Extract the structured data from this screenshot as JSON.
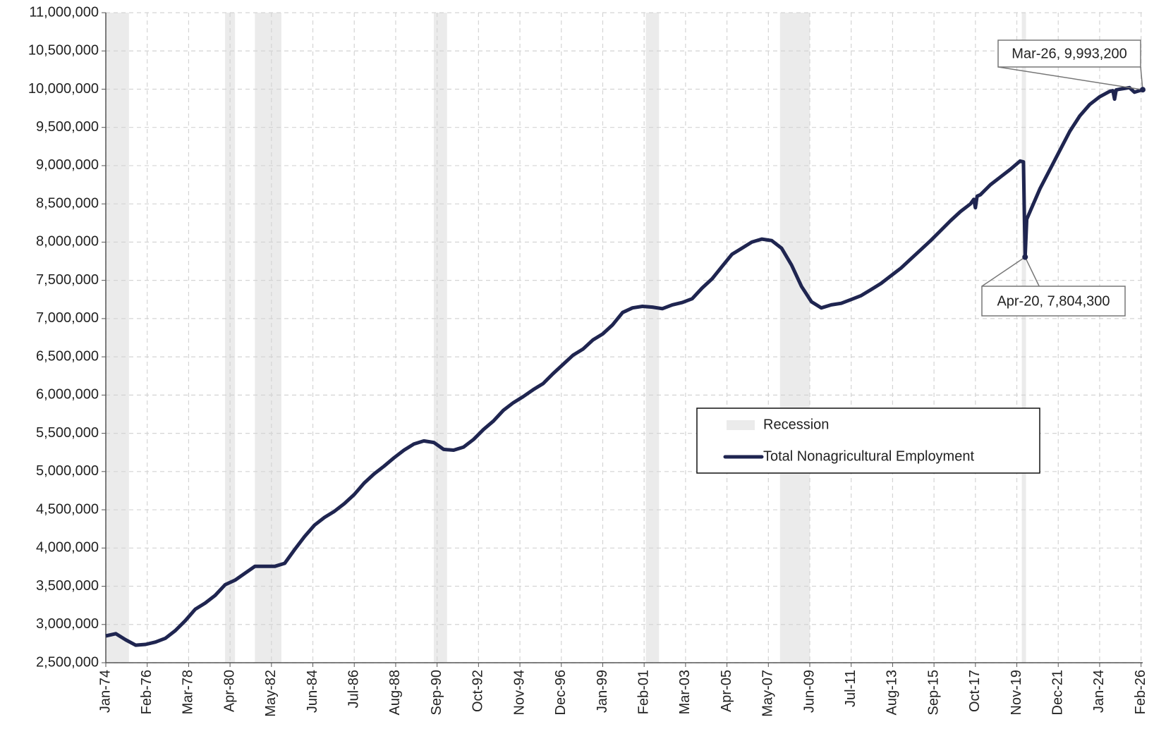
{
  "chart_data": {
    "type": "line",
    "xlim": [
      "Jan-74",
      "Mar-26"
    ],
    "xticks": [
      "Jan-74",
      "Feb-76",
      "Mar-78",
      "Apr-80",
      "May-82",
      "Jun-84",
      "Jul-86",
      "Aug-88",
      "Sep-90",
      "Oct-92",
      "Nov-94",
      "Dec-96",
      "Jan-99",
      "Feb-01",
      "Mar-03",
      "Apr-05",
      "May-07",
      "Jun-09",
      "Jul-11",
      "Aug-13",
      "Sep-15",
      "Oct-17",
      "Nov-19",
      "Dec-21",
      "Jan-24",
      "Feb-26"
    ],
    "ylim": [
      2500000,
      11000000
    ],
    "yticks": [
      {
        "value": 2500000,
        "label": "2,500,000"
      },
      {
        "value": 3000000,
        "label": "3,000,000"
      },
      {
        "value": 3500000,
        "label": "3,500,000"
      },
      {
        "value": 4000000,
        "label": "4,000,000"
      },
      {
        "value": 4500000,
        "label": "4,500,000"
      },
      {
        "value": 5000000,
        "label": "5,000,000"
      },
      {
        "value": 5500000,
        "label": "5,500,000"
      },
      {
        "value": 6000000,
        "label": "6,000,000"
      },
      {
        "value": 6500000,
        "label": "6,500,000"
      },
      {
        "value": 7000000,
        "label": "7,000,000"
      },
      {
        "value": 7500000,
        "label": "7,500,000"
      },
      {
        "value": 8000000,
        "label": "8,000,000"
      },
      {
        "value": 8500000,
        "label": "8,500,000"
      },
      {
        "value": 9000000,
        "label": "9,000,000"
      },
      {
        "value": 9500000,
        "label": "9,500,000"
      },
      {
        "value": 10000000,
        "label": "10,000,000"
      },
      {
        "value": 10500000,
        "label": "10,500,000"
      },
      {
        "value": 11000000,
        "label": "11,000,000"
      }
    ],
    "grid": true,
    "recessions": {
      "name": "Recession",
      "color": "#ebebeb",
      "periods": [
        [
          "Jan-74",
          "Mar-75"
        ],
        [
          "Jan-80",
          "Jul-80"
        ],
        [
          "Jul-81",
          "Nov-82"
        ],
        [
          "Jul-90",
          "Mar-91"
        ],
        [
          "Mar-01",
          "Nov-01"
        ],
        [
          "Dec-07",
          "Jun-09"
        ],
        [
          "Feb-20",
          "Apr-20"
        ]
      ]
    },
    "x": [
      "Jan-74",
      "Jul-74",
      "Jan-75",
      "Jul-75",
      "Jan-76",
      "Jul-76",
      "Jan-77",
      "Jul-77",
      "Jan-78",
      "Jul-78",
      "Jan-79",
      "Jul-79",
      "Jan-80",
      "Jul-80",
      "Jan-81",
      "Jul-81",
      "Jan-82",
      "Jul-82",
      "Jan-83",
      "Jul-83",
      "Jan-84",
      "Jul-84",
      "Jan-85",
      "Jul-85",
      "Jan-86",
      "Jul-86",
      "Jan-87",
      "Jul-87",
      "Jan-88",
      "Jul-88",
      "Jan-89",
      "Jul-89",
      "Jan-90",
      "Jul-90",
      "Jan-91",
      "Jul-91",
      "Jan-92",
      "Jul-92",
      "Jan-93",
      "Jul-93",
      "Jan-94",
      "Jul-94",
      "Jan-95",
      "Jul-95",
      "Jan-96",
      "Jul-96",
      "Jan-97",
      "Jul-97",
      "Jan-98",
      "Jul-98",
      "Jan-99",
      "Jul-99",
      "Jan-00",
      "Jul-00",
      "Jan-01",
      "Jul-01",
      "Jan-02",
      "Jul-02",
      "Jan-03",
      "Jul-03",
      "Jan-04",
      "Jul-04",
      "Jan-05",
      "Jul-05",
      "Jan-06",
      "Jul-06",
      "Jan-07",
      "Jul-07",
      "Jan-08",
      "Jul-08",
      "Jan-09",
      "Jul-09",
      "Jan-10",
      "Jul-10",
      "Jan-11",
      "Jul-11",
      "Jan-12",
      "Jul-12",
      "Jan-13",
      "Jul-13",
      "Jan-14",
      "Jul-14",
      "Jan-15",
      "Jul-15",
      "Jan-16",
      "Jul-16",
      "Jan-17",
      "Jul-17",
      "Sep-17",
      "Oct-17",
      "Nov-17",
      "Jan-18",
      "Jul-18",
      "Jan-19",
      "Jul-19",
      "Jan-20",
      "Mar-20",
      "Apr-20",
      "May-20",
      "Jul-20",
      "Jan-21",
      "Jul-21",
      "Jan-22",
      "Jul-22",
      "Jan-23",
      "Jul-23",
      "Jan-24",
      "Jul-24",
      "Sep-24",
      "Oct-24",
      "Nov-24",
      "Jan-25",
      "Jul-25",
      "Oct-25",
      "Jan-26",
      "Mar-26"
    ],
    "series": [
      {
        "name": "Total Nonagricultural Employment",
        "color": "#1f2550",
        "values": [
          2850000,
          2880000,
          2800000,
          2730000,
          2740000,
          2770000,
          2820000,
          2920000,
          3050000,
          3200000,
          3280000,
          3380000,
          3520000,
          3580000,
          3670000,
          3760000,
          3760000,
          3760000,
          3800000,
          3980000,
          4150000,
          4300000,
          4400000,
          4480000,
          4580000,
          4700000,
          4850000,
          4970000,
          5070000,
          5180000,
          5280000,
          5360000,
          5400000,
          5380000,
          5290000,
          5280000,
          5320000,
          5420000,
          5550000,
          5660000,
          5800000,
          5900000,
          5980000,
          6070000,
          6150000,
          6280000,
          6400000,
          6520000,
          6600000,
          6720000,
          6800000,
          6920000,
          7080000,
          7140000,
          7160000,
          7150000,
          7130000,
          7180000,
          7210000,
          7260000,
          7400000,
          7520000,
          7680000,
          7840000,
          7920000,
          8000000,
          8040000,
          8020000,
          7920000,
          7700000,
          7420000,
          7220000,
          7140000,
          7180000,
          7200000,
          7250000,
          7300000,
          7380000,
          7460000,
          7560000,
          7660000,
          7780000,
          7900000,
          8020000,
          8150000,
          8280000,
          8400000,
          8500000,
          8560000,
          8450000,
          8600000,
          8620000,
          8750000,
          8850000,
          8950000,
          9060000,
          9050000,
          7804300,
          8300000,
          8400000,
          8700000,
          8950000,
          9200000,
          9450000,
          9650000,
          9800000,
          9900000,
          9970000,
          9980000,
          9870000,
          9990000,
          10000000,
          10020000,
          9960000,
          9980000,
          9993200
        ]
      }
    ],
    "annotations": [
      {
        "x": "Mar-26",
        "value": 9993200,
        "label": "Mar-26, 9,993,200"
      },
      {
        "x": "Apr-20",
        "value": 7804300,
        "label": "Apr-20, 7,804,300"
      }
    ]
  }
}
